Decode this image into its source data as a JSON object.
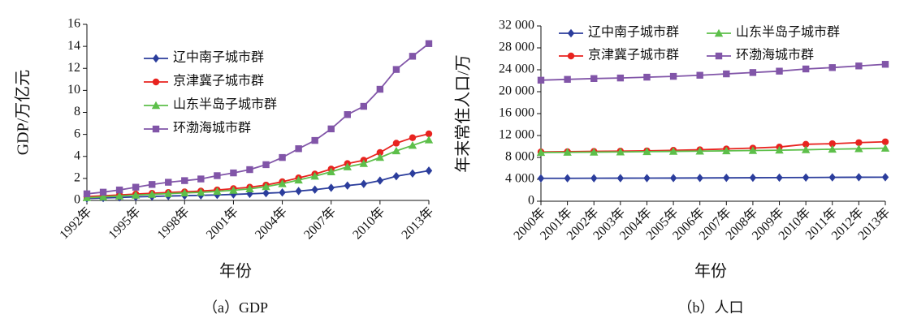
{
  "chart_data": [
    {
      "type": "line",
      "caption": "（a）GDP",
      "xlabel": "年份",
      "ylabel": "GDP/万亿元",
      "legend": "upper left",
      "categories": [
        "1992年",
        null,
        null,
        "1995年",
        null,
        null,
        "1998年",
        null,
        null,
        "2001年",
        null,
        null,
        "2004年",
        null,
        null,
        "2007年",
        null,
        null,
        "2010年",
        null,
        null,
        "2013年"
      ],
      "ylim": [
        0,
        16
      ],
      "yticks": [
        0,
        2,
        4,
        6,
        8,
        10,
        12,
        14,
        16
      ],
      "series": [
        {
          "name": "辽中南子城市群",
          "color": "#2b3d9c",
          "marker": "diamond",
          "values": [
            0.18,
            0.22,
            0.27,
            0.32,
            0.36,
            0.4,
            0.43,
            0.46,
            0.5,
            0.55,
            0.6,
            0.66,
            0.72,
            0.85,
            0.98,
            1.15,
            1.35,
            1.5,
            1.8,
            2.2,
            2.45,
            2.7
          ]
        },
        {
          "name": "京津冀子城市群",
          "color": "#e8231f",
          "marker": "circle",
          "values": [
            0.35,
            0.42,
            0.5,
            0.58,
            0.65,
            0.72,
            0.78,
            0.85,
            0.95,
            1.07,
            1.2,
            1.4,
            1.7,
            2.05,
            2.4,
            2.85,
            3.35,
            3.65,
            4.35,
            5.2,
            5.7,
            6.05
          ]
        },
        {
          "name": "山东半岛子城市群",
          "color": "#5dbf4a",
          "marker": "triangle",
          "values": [
            0.25,
            0.32,
            0.4,
            0.48,
            0.55,
            0.62,
            0.68,
            0.73,
            0.82,
            0.92,
            1.05,
            1.25,
            1.52,
            1.85,
            2.2,
            2.6,
            3.05,
            3.35,
            3.9,
            4.5,
            5.0,
            5.5
          ]
        },
        {
          "name": "环渤海城市群",
          "color": "#8155a8",
          "marker": "square",
          "values": [
            0.6,
            0.75,
            0.95,
            1.2,
            1.45,
            1.65,
            1.8,
            1.95,
            2.25,
            2.5,
            2.8,
            3.25,
            3.9,
            4.7,
            5.45,
            6.5,
            7.8,
            8.55,
            10.1,
            11.9,
            13.1,
            14.25
          ]
        }
      ]
    },
    {
      "type": "line",
      "caption": "（b）人口",
      "xlabel": "年份",
      "ylabel": "年末常住人口/万",
      "legend": "upper center",
      "categories": [
        "2000年",
        "2001年",
        "2002年",
        "2003年",
        "2004年",
        "2005年",
        "2006年",
        "2007年",
        "2008年",
        "2009年",
        "2010年",
        "2011年",
        "2012年",
        "2013年"
      ],
      "ylim": [
        0,
        32000
      ],
      "yticks": [
        0,
        {
          "value": 4000,
          "label": "4 000"
        },
        {
          "value": 8000,
          "label": "8 000"
        },
        {
          "value": 12000,
          "label": "12 000"
        },
        {
          "value": 16000,
          "label": "16 000"
        },
        {
          "value": 20000,
          "label": "20 000"
        },
        {
          "value": 24000,
          "label": "24 000"
        },
        {
          "value": 28000,
          "label": "28 000"
        },
        {
          "value": 32000,
          "label": "32 000"
        }
      ],
      "series": [
        {
          "name": "辽中南子城市群",
          "color": "#2b3d9c",
          "marker": "diamond",
          "values": [
            4180,
            4190,
            4200,
            4210,
            4220,
            4230,
            4250,
            4270,
            4290,
            4310,
            4330,
            4360,
            4380,
            4390
          ]
        },
        {
          "name": "京津冀子城市群",
          "color": "#e8231f",
          "marker": "circle",
          "values": [
            9000,
            9050,
            9100,
            9150,
            9200,
            9300,
            9400,
            9550,
            9700,
            9900,
            10400,
            10500,
            10700,
            10850
          ]
        },
        {
          "name": "山东半岛子城市群",
          "color": "#5dbf4a",
          "marker": "triangle",
          "values": [
            8900,
            8930,
            8960,
            9000,
            9050,
            9100,
            9150,
            9200,
            9260,
            9320,
            9400,
            9500,
            9580,
            9680
          ]
        },
        {
          "name": "环渤海城市群",
          "color": "#8155a8",
          "marker": "square",
          "values": [
            22100,
            22250,
            22400,
            22500,
            22650,
            22800,
            23000,
            23250,
            23500,
            23750,
            24150,
            24400,
            24700,
            25000
          ]
        }
      ]
    }
  ]
}
